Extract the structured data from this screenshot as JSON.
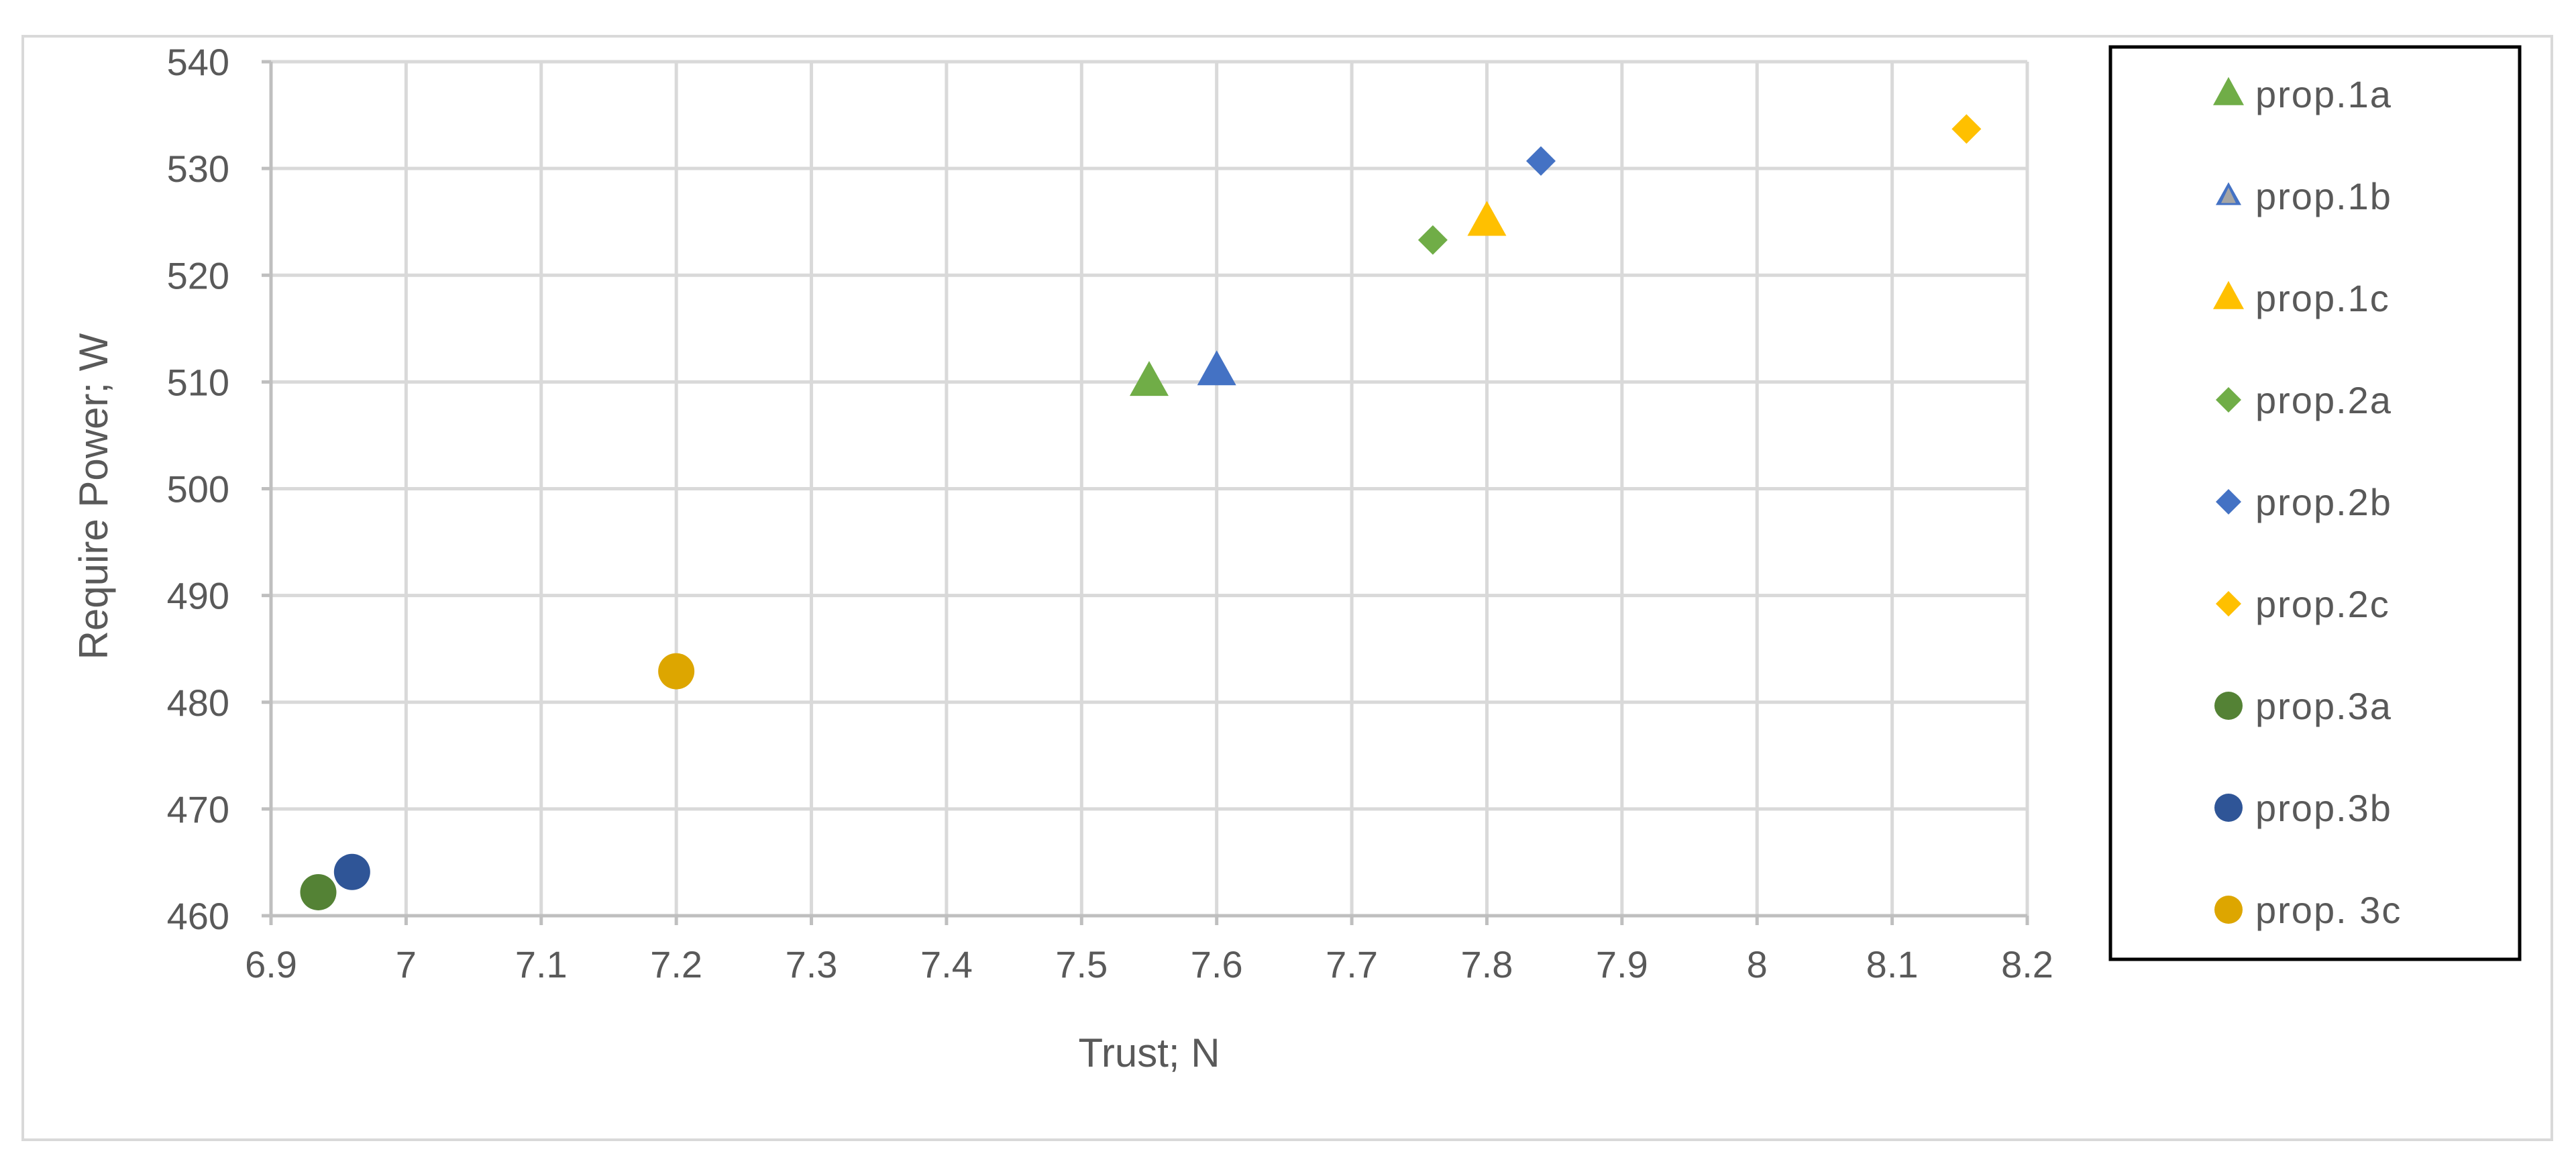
{
  "chart_data": {
    "type": "scatter",
    "title": "",
    "xlabel": "Trust; N",
    "ylabel": "Require Power;  W",
    "xlim": [
      6.9,
      8.2
    ],
    "ylim": [
      460,
      540
    ],
    "xticks": [
      6.9,
      7,
      7.1,
      7.2,
      7.3,
      7.4,
      7.5,
      7.6,
      7.7,
      7.8,
      7.9,
      8,
      8.1,
      8.2
    ],
    "xtick_labels": [
      "6.9",
      "7",
      "7.1",
      "7.2",
      "7.3",
      "7.4",
      "7.5",
      "7.6",
      "7.7",
      "7.8",
      "7.9",
      "8",
      "8.1",
      "8.2"
    ],
    "yticks": [
      460,
      470,
      480,
      490,
      500,
      510,
      520,
      530,
      540
    ],
    "ytick_labels": [
      "460",
      "470",
      "480",
      "490",
      "500",
      "510",
      "520",
      "530",
      "540"
    ],
    "grid": true,
    "legend_position": "right",
    "series": [
      {
        "name": "prop.1a",
        "marker": "triangle",
        "color": "#70AD47",
        "size": "large",
        "points": [
          {
            "x": 7.55,
            "y": 510
          }
        ]
      },
      {
        "name": "prop.1b",
        "marker": "triangle",
        "color": "#A5A5A5",
        "size": "small",
        "points": []
      },
      {
        "name": "prop.1c",
        "marker": "triangle",
        "color": "#FFC000",
        "size": "large",
        "points": [
          {
            "x": 7.8,
            "y": 525
          }
        ]
      },
      {
        "name": "prop.2a",
        "marker": "diamond",
        "color": "#70AD47",
        "size": "small",
        "points": [
          {
            "x": 7.76,
            "y": 523.3
          }
        ]
      },
      {
        "name": "prop.2b",
        "marker": "diamond",
        "color": "#4472C4",
        "size": "small",
        "points": [
          {
            "x": 7.84,
            "y": 530.7
          }
        ]
      },
      {
        "name": "prop.2c",
        "marker": "diamond",
        "color": "#FFC000",
        "size": "small",
        "points": [
          {
            "x": 8.155,
            "y": 533.7
          }
        ]
      },
      {
        "name": "prop.3a",
        "marker": "circle",
        "color": "#548235",
        "size": "large",
        "points": [
          {
            "x": 6.935,
            "y": 462.2
          }
        ]
      },
      {
        "name": "prop.3b",
        "marker": "circle",
        "color": "#2F5597",
        "size": "large",
        "points": [
          {
            "x": 6.96,
            "y": 464.1
          }
        ]
      },
      {
        "name": "prop. 3c",
        "marker": "circle",
        "color": "#DDA600",
        "size": "large",
        "points": [
          {
            "x": 7.2,
            "y": 482.9
          }
        ]
      }
    ],
    "extra_points": [
      {
        "series_ref": "prop.1b",
        "marker": "triangle",
        "color": "#4472C4",
        "size": "large",
        "x": 7.6,
        "y": 511
      }
    ]
  }
}
